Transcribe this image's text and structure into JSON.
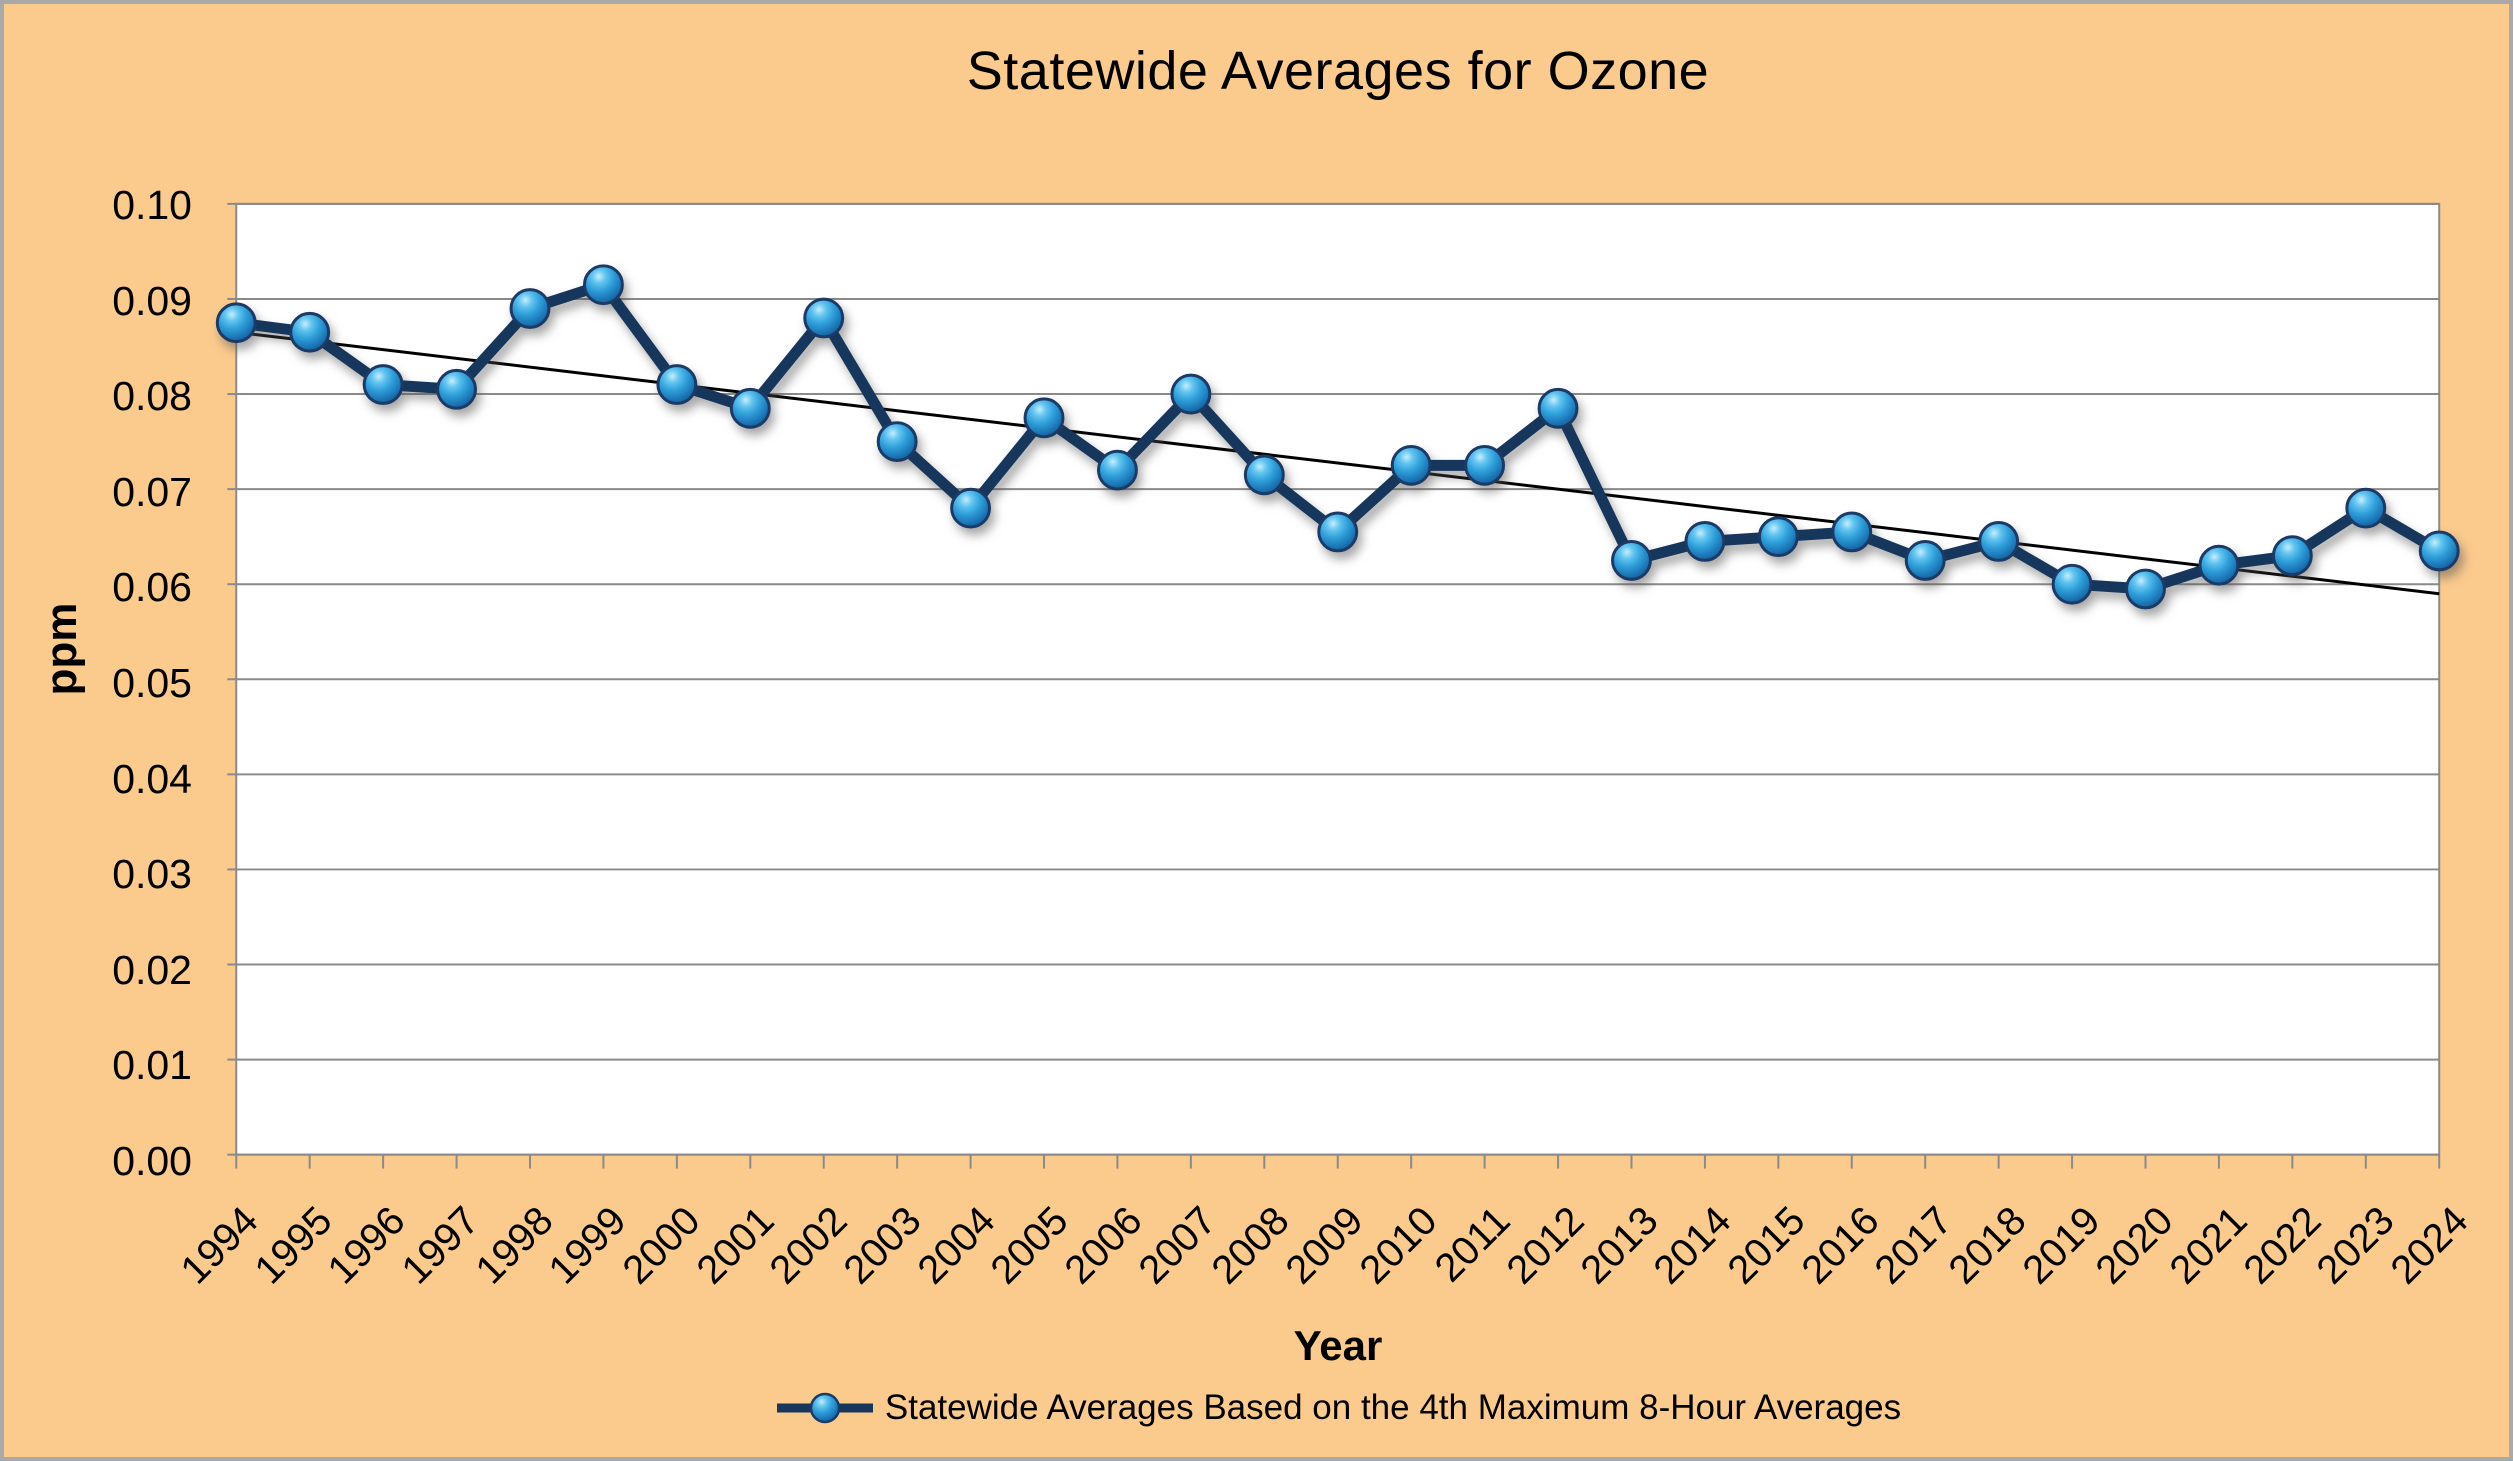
{
  "title": "Statewide Averages for Ozone",
  "y_axis": {
    "title": "ppm",
    "tick_labels": [
      "0.10",
      "0.09",
      "0.08",
      "0.07",
      "0.06",
      "0.05",
      "0.04",
      "0.03",
      "0.02",
      "0.01",
      "0.00"
    ]
  },
  "x_axis": {
    "title": "Year"
  },
  "legend": {
    "label": "Statewide Averages Based on the 4th Maximum 8-Hour Averages"
  },
  "colors": {
    "background": "#FBCA8D",
    "outer_border": "#A9A9A9",
    "plot_background": "#FFFFFF",
    "gridline": "#8A8A8A",
    "series_line": "#16365C",
    "marker_rim": "#1B3A66",
    "marker_fill": "#2F9FDA",
    "trendline": "#000000",
    "text": "#000000"
  },
  "chart_data": {
    "type": "line",
    "title": "Statewide Averages for Ozone",
    "xlabel": "Year",
    "ylabel": "ppm",
    "x": [
      1994,
      1995,
      1996,
      1997,
      1998,
      1999,
      2000,
      2001,
      2002,
      2003,
      2004,
      2005,
      2006,
      2007,
      2008,
      2009,
      2010,
      2011,
      2012,
      2013,
      2014,
      2015,
      2016,
      2017,
      2018,
      2019,
      2020,
      2021,
      2022,
      2023,
      2024
    ],
    "series": [
      {
        "name": "Statewide Averages Based on the 4th Maximum 8-Hour Averages",
        "values": [
          0.0875,
          0.0865,
          0.081,
          0.0805,
          0.089,
          0.0915,
          0.081,
          0.0785,
          0.088,
          0.075,
          0.068,
          0.0775,
          0.072,
          0.08,
          0.0715,
          0.0655,
          0.0725,
          0.0725,
          0.0785,
          0.0625,
          0.0645,
          0.065,
          0.0655,
          0.0625,
          0.0645,
          0.06,
          0.0595,
          0.062,
          0.063,
          0.068,
          0.0635
        ]
      }
    ],
    "trendline": {
      "start": 0.0865,
      "end": 0.059
    },
    "ylim": [
      0,
      0.1
    ],
    "ytick_step": 0.01,
    "grid": true,
    "legend_position": "bottom"
  }
}
